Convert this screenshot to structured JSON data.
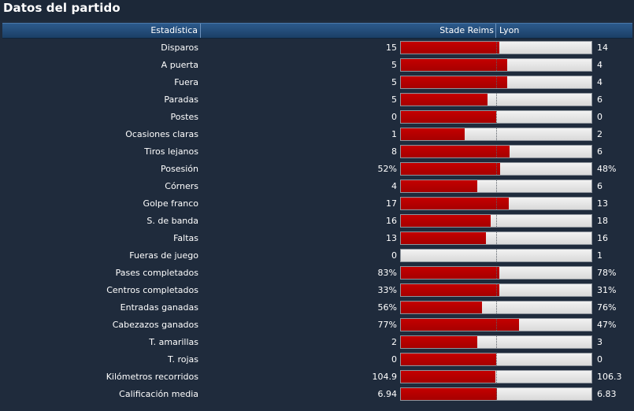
{
  "title": "Datos del partido",
  "header": {
    "stat_label": "Estadística",
    "home_team": "Stade Reims",
    "away_team": "Lyon"
  },
  "colors": {
    "home_bar": "#b00000",
    "away_bar": "#e6e6e6",
    "background": "#1f2b3c"
  },
  "stats": [
    {
      "name": "Disparos",
      "home": "15",
      "away": "14",
      "home_share": 0.517
    },
    {
      "name": "A puerta",
      "home": "5",
      "away": "4",
      "home_share": 0.556
    },
    {
      "name": "Fuera",
      "home": "5",
      "away": "4",
      "home_share": 0.556
    },
    {
      "name": "Paradas",
      "home": "5",
      "away": "6",
      "home_share": 0.455
    },
    {
      "name": "Postes",
      "home": "0",
      "away": "0",
      "home_share": 0.5
    },
    {
      "name": "Ocasiones claras",
      "home": "1",
      "away": "2",
      "home_share": 0.333
    },
    {
      "name": "Tiros lejanos",
      "home": "8",
      "away": "6",
      "home_share": 0.571
    },
    {
      "name": "Posesión",
      "home": "52%",
      "away": "48%",
      "home_share": 0.52
    },
    {
      "name": "Córners",
      "home": "4",
      "away": "6",
      "home_share": 0.4
    },
    {
      "name": "Golpe franco",
      "home": "17",
      "away": "13",
      "home_share": 0.567
    },
    {
      "name": "S. de banda",
      "home": "16",
      "away": "18",
      "home_share": 0.471
    },
    {
      "name": "Faltas",
      "home": "13",
      "away": "16",
      "home_share": 0.448
    },
    {
      "name": "Fueras de juego",
      "home": "0",
      "away": "1",
      "home_share": 0.0
    },
    {
      "name": "Pases completados",
      "home": "83%",
      "away": "78%",
      "home_share": 0.516
    },
    {
      "name": "Centros completados",
      "home": "33%",
      "away": "31%",
      "home_share": 0.516
    },
    {
      "name": "Entradas ganadas",
      "home": "56%",
      "away": "76%",
      "home_share": 0.424
    },
    {
      "name": "Cabezazos ganados",
      "home": "77%",
      "away": "47%",
      "home_share": 0.621
    },
    {
      "name": "T. amarillas",
      "home": "2",
      "away": "3",
      "home_share": 0.4
    },
    {
      "name": "T. rojas",
      "home": "0",
      "away": "0",
      "home_share": 0.5
    },
    {
      "name": "Kilómetros recorridos",
      "home": "104.9",
      "away": "106.3",
      "home_share": 0.497
    },
    {
      "name": "Calificación media",
      "home": "6.94",
      "away": "6.83",
      "home_share": 0.504
    }
  ]
}
